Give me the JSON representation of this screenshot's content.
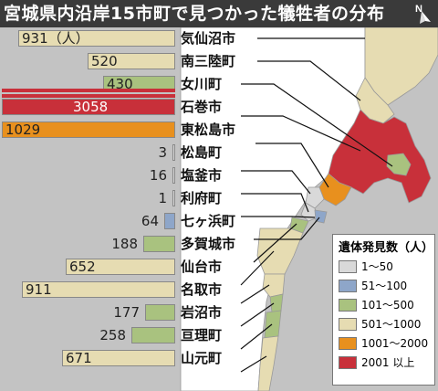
{
  "title": "宮城県内沿岸15市町で見つかった犠牲者の分布",
  "north_label": "N",
  "colors": {
    "c1": "#d9d9d9",
    "c2": "#8ea6c9",
    "c3": "#a9c27f",
    "c4": "#e6dcb2",
    "c5": "#e8901e",
    "c6": "#c8303a"
  },
  "rows": [
    {
      "name": "気仙沼市",
      "value": 931,
      "label": "931（人）",
      "cat": "c4"
    },
    {
      "name": "南三陸町",
      "value": 520,
      "label": "520",
      "cat": "c4"
    },
    {
      "name": "女川町",
      "value": 430,
      "label": "430",
      "cat": "c3"
    },
    {
      "name": "石巻市",
      "value": 3058,
      "label": "3058",
      "cat": "c6"
    },
    {
      "name": "東松島市",
      "value": 1029,
      "label": "1029",
      "cat": "c5"
    },
    {
      "name": "松島町",
      "value": 3,
      "label": "3",
      "cat": "c1"
    },
    {
      "name": "塩釜市",
      "value": 16,
      "label": "16",
      "cat": "c1"
    },
    {
      "name": "利府町",
      "value": 1,
      "label": "1",
      "cat": "c1"
    },
    {
      "name": "七ヶ浜町",
      "value": 64,
      "label": "64",
      "cat": "c2"
    },
    {
      "name": "多賀城市",
      "value": 188,
      "label": "188",
      "cat": "c3"
    },
    {
      "name": "仙台市",
      "value": 652,
      "label": "652",
      "cat": "c4"
    },
    {
      "name": "名取市",
      "value": 911,
      "label": "911",
      "cat": "c4"
    },
    {
      "name": "岩沼市",
      "value": 177,
      "label": "177",
      "cat": "c3"
    },
    {
      "name": "亘理町",
      "value": 258,
      "label": "258",
      "cat": "c3"
    },
    {
      "name": "山元町",
      "value": 671,
      "label": "671",
      "cat": "c4"
    }
  ],
  "legend": {
    "title": "遺体発見数（人）",
    "items": [
      {
        "label": "1～50",
        "cat": "c1"
      },
      {
        "label": "51～100",
        "cat": "c2"
      },
      {
        "label": "101～500",
        "cat": "c3"
      },
      {
        "label": "501～1000",
        "cat": "c4"
      },
      {
        "label": "1001～2000",
        "cat": "c5"
      },
      {
        "label": "2001 以上",
        "cat": "c6"
      }
    ]
  }
}
